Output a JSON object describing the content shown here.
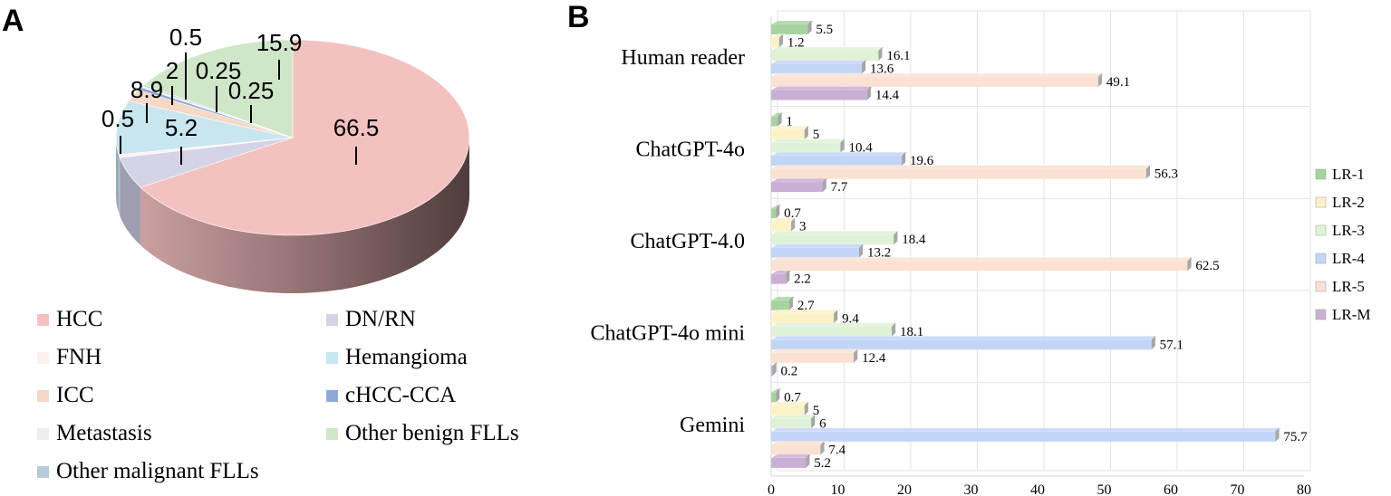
{
  "chart_data": [
    {
      "panel": "A",
      "type": "pie",
      "title": "",
      "slices": [
        {
          "label": "HCC",
          "value": 66.5,
          "display": "66.5",
          "color": "#f4c1c1",
          "side": "#b48a8a"
        },
        {
          "label": "DN/RN",
          "value": 5.2,
          "display": "5.2",
          "color": "#d5d3e6",
          "side": "#9f9db2"
        },
        {
          "label": "FNH",
          "value": 0.5,
          "display": "0.5",
          "color": "#fdf1ef",
          "side": "#c8bcba"
        },
        {
          "label": "Hemangioma",
          "value": 8.9,
          "display": "8.9",
          "color": "#c8e6ef",
          "side": "#93aeb8"
        },
        {
          "label": "ICC",
          "value": 2,
          "display": "2",
          "color": "#f6d8c6",
          "side": "#c0a595"
        },
        {
          "label": "cHCC-CCA",
          "value": 0.5,
          "display": "0.5",
          "color": "#8fa8d8",
          "side": "#6a80a8"
        },
        {
          "label": "Metastasis",
          "value": 0.25,
          "display": "0.25",
          "color": "#eeeeee",
          "side": "#bbbbbb"
        },
        {
          "label": "Other malignant FLLs",
          "value": 0.25,
          "display": "0.25",
          "color": "#b5cbd6",
          "side": "#8aa0ab"
        },
        {
          "label": "Other benign FLLs",
          "value": 15.9,
          "display": "15.9",
          "color": "#cfe6c9",
          "side": "#9ab595"
        }
      ],
      "legend": {
        "left": [
          "HCC",
          "FNH",
          "ICC",
          "Metastasis",
          "Other malignant FLLs"
        ],
        "right": [
          "DN/RN",
          "Hemangioma",
          "cHCC-CCA",
          "Other benign FLLs"
        ]
      }
    },
    {
      "panel": "B",
      "type": "bar",
      "orientation": "horizontal",
      "categories": [
        "Human reader",
        "ChatGPT-4o",
        "ChatGPT-4.0",
        "ChatGPT-4o mini",
        "Gemini"
      ],
      "series": [
        {
          "name": "LR-1",
          "color": "#a7d3a1",
          "values": [
            5.5,
            1,
            0.7,
            2.7,
            0.7
          ]
        },
        {
          "name": "LR-2",
          "color": "#fdf2c7",
          "values": [
            1.2,
            5,
            3,
            9.4,
            5
          ]
        },
        {
          "name": "LR-3",
          "color": "#dff2d7",
          "values": [
            16.1,
            10.4,
            18.4,
            18.1,
            6
          ]
        },
        {
          "name": "LR-4",
          "color": "#c2d5f6",
          "values": [
            13.6,
            19.6,
            13.2,
            57.1,
            75.7
          ]
        },
        {
          "name": "LR-5",
          "color": "#fbe1d3",
          "values": [
            49.1,
            56.3,
            62.5,
            12.4,
            7.4
          ]
        },
        {
          "name": "LR-M",
          "color": "#c9afd3",
          "values": [
            14.4,
            7.7,
            2.2,
            0.2,
            5.2
          ]
        }
      ],
      "xlim": [
        0,
        80
      ],
      "xticks": [
        0,
        10,
        20,
        30,
        40,
        50,
        60,
        70,
        80
      ],
      "xlabel": "",
      "ylabel": "",
      "grid": true,
      "legend_position": "right"
    }
  ],
  "panel_labels": {
    "a": "A",
    "b": "B"
  }
}
